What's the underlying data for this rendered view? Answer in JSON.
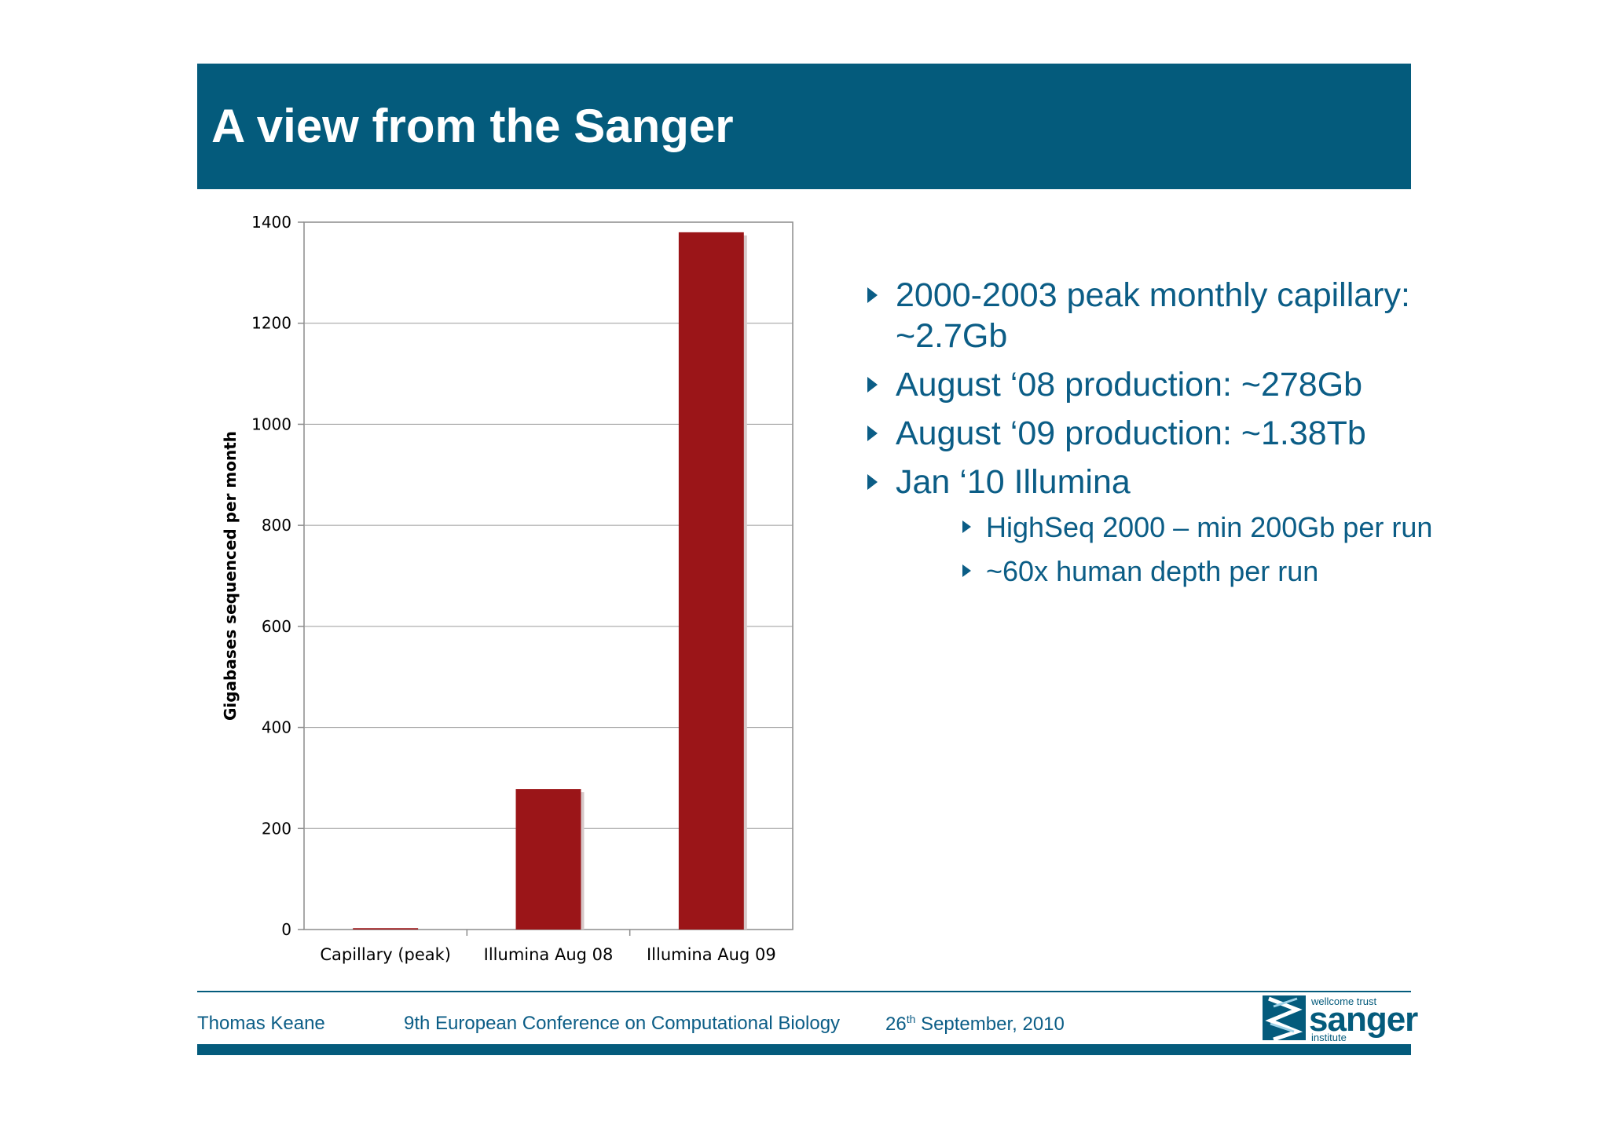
{
  "slide": {
    "title": "A view from the Sanger"
  },
  "chart_data": {
    "type": "bar",
    "categories": [
      "Capillary (peak)",
      "Illumina Aug 08",
      "Illumina Aug 09"
    ],
    "values": [
      2.7,
      278,
      1380
    ],
    "ylabel": "Gigabases sequenced per month",
    "ylim": [
      0,
      1400
    ],
    "yticks": [
      0,
      200,
      400,
      600,
      800,
      1000,
      1200,
      1400
    ],
    "grid": true,
    "bar_color": "#9b1518"
  },
  "bullets": [
    {
      "text": "2000-2003 peak monthly capillary: ~2.7Gb",
      "level": 1
    },
    {
      "text": "August ‘08 production: ~278Gb",
      "level": 1
    },
    {
      "text": "August ‘09 production: ~1.38Tb",
      "level": 1
    },
    {
      "text": "Jan ‘10 Illumina",
      "level": 1
    },
    {
      "text": "HighSeq 2000 – min 200Gb per run",
      "level": 2
    },
    {
      "text": "~60x human depth per run",
      "level": 2
    }
  ],
  "footer": {
    "author": "Thomas Keane",
    "conference": "9th European Conference on Computational Biology",
    "date_day": "26",
    "date_sup": "th",
    "date_rest": " September, 2010"
  },
  "logo": {
    "top": "wellcome trust",
    "main": "sanger",
    "bottom": "institute"
  },
  "colors": {
    "brand": "#045b7c",
    "bullet_text": "#0b5d86",
    "bar": "#9b1518"
  }
}
